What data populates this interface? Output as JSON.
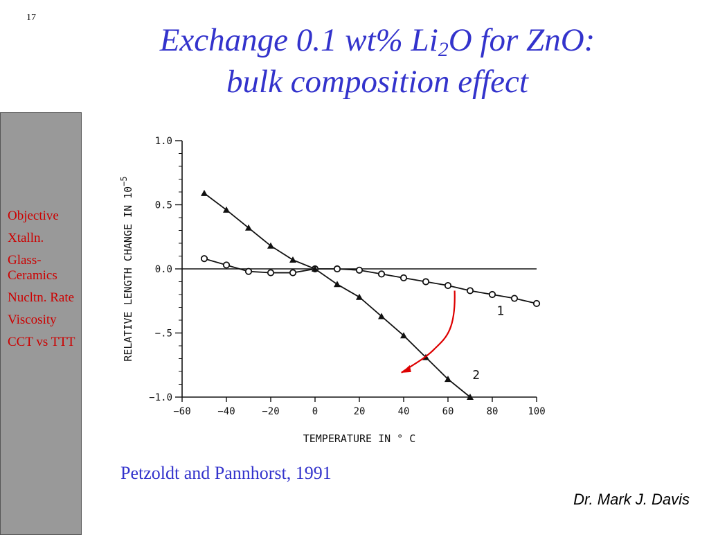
{
  "slide": {
    "number": "17",
    "title_line1_pre": "Exchange 0.1 wt% Li",
    "title_line1_sub": "2",
    "title_line1_post": "O for ZnO:",
    "title_line2": "bulk composition effect",
    "citation": "Petzoldt and Pannhorst, 1991",
    "author": "Dr. Mark J. Davis"
  },
  "sidebar": {
    "items": [
      {
        "label": "Objective"
      },
      {
        "label": "Xtalln."
      },
      {
        "label": "Glass-Ceramics"
      },
      {
        "label": "Nucltn. Rate"
      },
      {
        "label": "Viscosity"
      },
      {
        "label": "CCT vs TTT"
      }
    ]
  },
  "colors": {
    "title": "#3333cc",
    "sidebar_bg": "#999999",
    "sidebar_text": "#cc0000",
    "arrow": "#dd0000"
  },
  "chart_data": {
    "type": "line",
    "xlabel": "TEMPERATURE IN ° C",
    "ylabel": "RELATIVE LENGTH CHANGE IN 10",
    "ylabel_exponent": "−5",
    "xlim": [
      -60,
      100
    ],
    "ylim": [
      -1.0,
      1.0
    ],
    "x_ticks": [
      -60,
      -40,
      -20,
      0,
      20,
      40,
      60,
      80,
      100
    ],
    "x_tick_labels": [
      "−60",
      "−40",
      "−20",
      "0",
      "20",
      "40",
      "60",
      "80",
      "100"
    ],
    "y_ticks": [
      1.0,
      0.5,
      0.0,
      -0.5,
      -1.0
    ],
    "y_tick_labels": [
      "1.0",
      "0.5",
      "0.0",
      "−.5",
      "−1.0"
    ],
    "series": [
      {
        "name": "1",
        "marker": "circle",
        "x": [
          -50,
          -40,
          -30,
          -20,
          -10,
          0,
          10,
          20,
          30,
          40,
          50,
          60,
          70,
          80,
          90,
          100
        ],
        "y": [
          0.08,
          0.03,
          -0.02,
          -0.03,
          -0.03,
          0.0,
          0.0,
          -0.01,
          -0.04,
          -0.07,
          -0.1,
          -0.13,
          -0.17,
          -0.2,
          -0.23,
          -0.27
        ]
      },
      {
        "name": "2",
        "marker": "triangle",
        "x": [
          -50,
          -40,
          -30,
          -20,
          -10,
          0,
          10,
          20,
          30,
          40,
          50,
          60,
          70
        ],
        "y": [
          0.59,
          0.46,
          0.32,
          0.18,
          0.07,
          0.0,
          -0.12,
          -0.22,
          -0.37,
          -0.52,
          -0.69,
          -0.86,
          -1.0
        ]
      }
    ],
    "annotations": [
      {
        "text": "1",
        "x": 82,
        "y": -0.36
      },
      {
        "text": "2",
        "x": 71,
        "y": -0.86
      }
    ],
    "arrow": {
      "from": [
        63,
        -0.17
      ],
      "to": [
        39,
        -0.81
      ]
    }
  }
}
